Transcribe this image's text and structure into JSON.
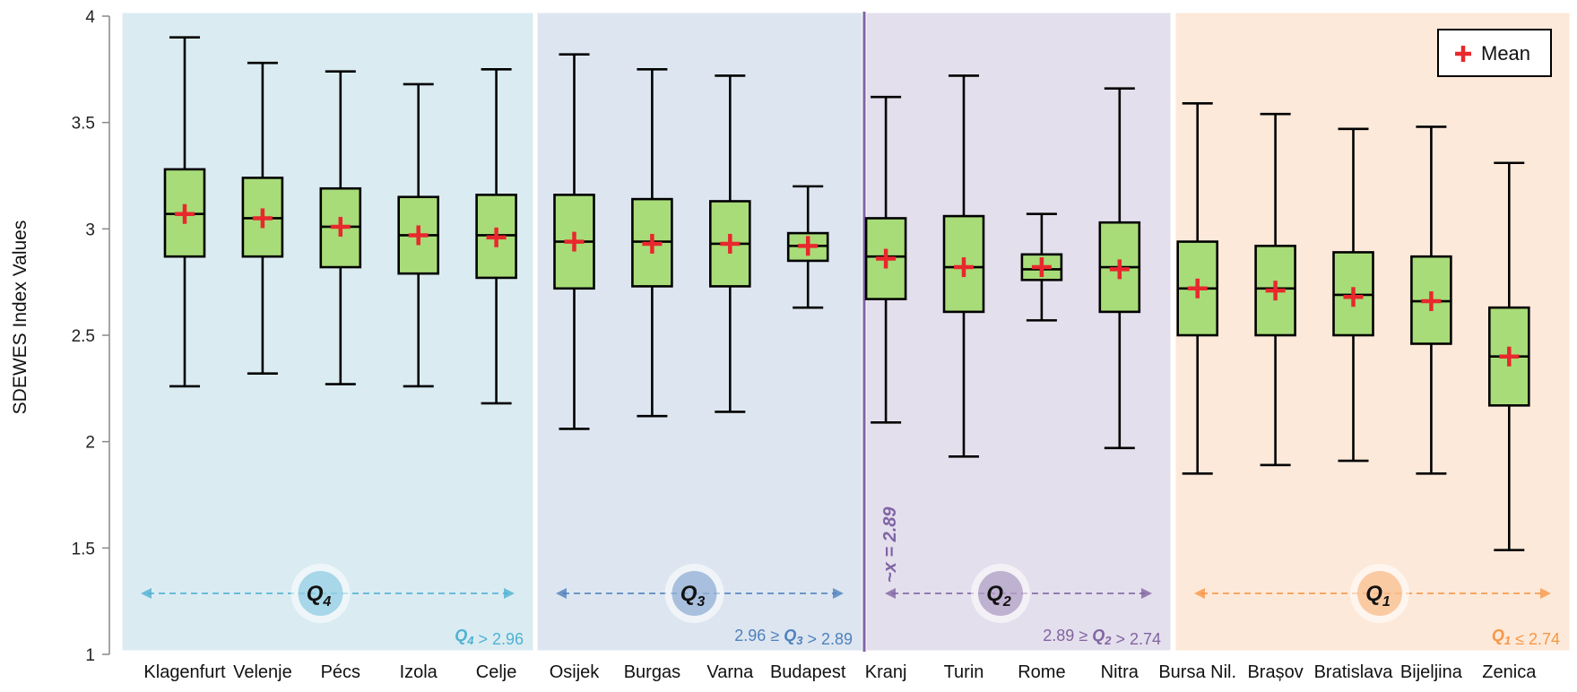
{
  "chart_data": {
    "type": "box",
    "ylabel": "SDEWES Index Values",
    "xlabel": "",
    "ylim": [
      1,
      4
    ],
    "yticks": [
      "1",
      "1.5",
      "2",
      "2.5",
      "3",
      "3.5",
      "4"
    ],
    "legend": {
      "label": "Mean",
      "placement": "top-right",
      "marker": "+",
      "marker_color": "#e8282d"
    },
    "box_fill": "#a8dc78",
    "categories": [
      "Klagenfurt",
      "Velenje",
      "Pécs",
      "Izola",
      "Celje",
      "Osijek",
      "Burgas",
      "Varna",
      "Budapest",
      "Kranj",
      "Turin",
      "Rome",
      "Nitra",
      "Bursa Nil.",
      "Brașov",
      "Bratislava",
      "Bijeljina",
      "Zenica"
    ],
    "boxes": [
      {
        "min": 2.26,
        "q1": 2.87,
        "median": 3.07,
        "q3": 3.28,
        "max": 3.9,
        "mean": 3.07
      },
      {
        "min": 2.32,
        "q1": 2.87,
        "median": 3.05,
        "q3": 3.24,
        "max": 3.78,
        "mean": 3.05
      },
      {
        "min": 2.27,
        "q1": 2.82,
        "median": 3.01,
        "q3": 3.19,
        "max": 3.74,
        "mean": 3.01
      },
      {
        "min": 2.26,
        "q1": 2.79,
        "median": 2.97,
        "q3": 3.15,
        "max": 3.68,
        "mean": 2.97
      },
      {
        "min": 2.18,
        "q1": 2.77,
        "median": 2.97,
        "q3": 3.16,
        "max": 3.75,
        "mean": 2.96
      },
      {
        "min": 2.06,
        "q1": 2.72,
        "median": 2.94,
        "q3": 3.16,
        "max": 3.82,
        "mean": 2.94
      },
      {
        "min": 2.12,
        "q1": 2.73,
        "median": 2.94,
        "q3": 3.14,
        "max": 3.75,
        "mean": 2.93
      },
      {
        "min": 2.14,
        "q1": 2.73,
        "median": 2.93,
        "q3": 3.13,
        "max": 3.72,
        "mean": 2.93
      },
      {
        "min": 2.63,
        "q1": 2.85,
        "median": 2.92,
        "q3": 2.98,
        "max": 3.2,
        "mean": 2.92
      },
      {
        "min": 2.09,
        "q1": 2.67,
        "median": 2.87,
        "q3": 3.05,
        "max": 3.62,
        "mean": 2.86
      },
      {
        "min": 1.93,
        "q1": 2.61,
        "median": 2.82,
        "q3": 3.06,
        "max": 3.72,
        "mean": 2.82
      },
      {
        "min": 2.57,
        "q1": 2.76,
        "median": 2.81,
        "q3": 2.88,
        "max": 3.07,
        "mean": 2.82
      },
      {
        "min": 1.97,
        "q1": 2.61,
        "median": 2.82,
        "q3": 3.03,
        "max": 3.66,
        "mean": 2.81
      },
      {
        "min": 1.85,
        "q1": 2.5,
        "median": 2.72,
        "q3": 2.94,
        "max": 3.59,
        "mean": 2.72
      },
      {
        "min": 1.89,
        "q1": 2.5,
        "median": 2.72,
        "q3": 2.92,
        "max": 3.54,
        "mean": 2.71
      },
      {
        "min": 1.91,
        "q1": 2.5,
        "median": 2.69,
        "q3": 2.89,
        "max": 3.47,
        "mean": 2.68
      },
      {
        "min": 1.85,
        "q1": 2.46,
        "median": 2.66,
        "q3": 2.87,
        "max": 3.48,
        "mean": 2.66
      },
      {
        "min": 1.49,
        "q1": 2.17,
        "median": 2.4,
        "q3": 2.63,
        "max": 3.31,
        "mean": 2.4
      }
    ],
    "groups": [
      {
        "badge": "Q",
        "sub": "4",
        "first": 0,
        "last": 4,
        "fill": "#daecf2",
        "color": "#4fb1d2",
        "note": [
          {
            "t": "Q",
            "s": "4",
            "i": true
          },
          {
            "t": " > 2.96"
          }
        ]
      },
      {
        "badge": "Q",
        "sub": "3",
        "first": 5,
        "last": 8,
        "fill": "#dde6f0",
        "color": "#4f81bd",
        "note": [
          {
            "t": "2.96 ≥ "
          },
          {
            "t": "Q",
            "s": "3",
            "i": true
          },
          {
            "t": " > 2.89"
          }
        ]
      },
      {
        "badge": "Q",
        "sub": "2",
        "first": 9,
        "last": 12,
        "fill": "#e4dfec",
        "color": "#8064a2",
        "note": [
          {
            "t": "2.89 ≥ "
          },
          {
            "t": "Q",
            "s": "2",
            "i": true
          },
          {
            "t": " > 2.74"
          }
        ]
      },
      {
        "badge": "Q",
        "sub": "1",
        "first": 13,
        "last": 17,
        "fill": "#fde9d9",
        "color": "#f79646",
        "note": [
          {
            "t": "Q",
            "s": "1",
            "i": true
          },
          {
            "t": " ≤ 2.74"
          }
        ]
      }
    ],
    "median_line": {
      "label": "~x = 2.89",
      "value": 2.89,
      "color": "#7f64a6"
    }
  }
}
